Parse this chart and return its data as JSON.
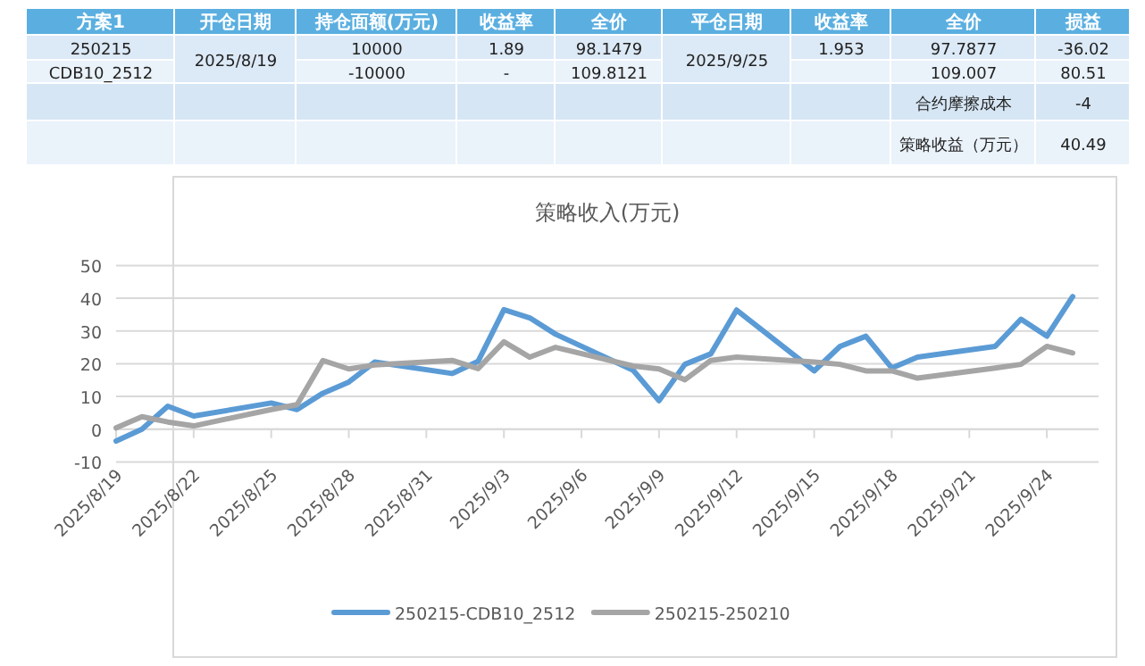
{
  "chart_data": [
    {
      "type": "other",
      "categories": [
        "方案1",
        "开仓日期",
        "持仓面额(万元)",
        "收益率",
        "全价",
        "平仓日期",
        "收益率",
        "全价",
        "损益"
      ],
      "annotations": [
        "250215",
        "2025/8/19",
        "10000",
        "1.89",
        "98.1479",
        "2025/9/25",
        "1.953",
        "97.7877",
        "-36.02",
        "CDB10_2512",
        "-10000",
        "-",
        "109.8121",
        "109.007",
        "80.51",
        "合约摩擦成本",
        "-4",
        "策略收益（万元）",
        "40.49"
      ]
    },
    {
      "type": "line",
      "title": "策略收入(万元)",
      "x": [
        "2025-08-19",
        "2025-08-20",
        "2025-08-21",
        "2025-08-22",
        "2025-08-25",
        "2025-08-26",
        "2025-08-27",
        "2025-08-28",
        "2025-08-29",
        "2025-09-01",
        "2025-09-02",
        "2025-09-03",
        "2025-09-04",
        "2025-09-05",
        "2025-09-08",
        "2025-09-09",
        "2025-09-10",
        "2025-09-11",
        "2025-09-12",
        "2025-09-15",
        "2025-09-16",
        "2025-09-17",
        "2025-09-18",
        "2025-09-19",
        "2025-09-22",
        "2025-09-23",
        "2025-09-24",
        "2025-09-25"
      ],
      "series": [
        {
          "name": "250215-CDB10_2512",
          "color": "#5b9bd5",
          "values": [
            -3.6,
            0,
            7,
            4,
            8,
            6,
            11,
            14.4,
            20.5,
            17,
            20.7,
            36.5,
            34,
            29,
            18,
            8.7,
            19.8,
            23,
            36.4,
            17.8,
            25.3,
            28.4,
            18.7,
            22,
            25.3,
            33.6,
            28.4,
            40.5
          ]
        },
        {
          "name": "250215-250210",
          "color": "#a5a5a5",
          "values": [
            0.4,
            3.8,
            2.2,
            1,
            6,
            7.5,
            21,
            18.4,
            19.6,
            21,
            18.5,
            26.7,
            22,
            25,
            19.3,
            18.4,
            15.1,
            21,
            22,
            20.5,
            19.8,
            17.8,
            17.8,
            15.6,
            18.7,
            19.8,
            25.3,
            23.3
          ]
        }
      ],
      "xlim": [
        "2025-08-19",
        "2025-09-26"
      ],
      "xticks": [
        {
          "value": "2025-08-19",
          "label": "2025/8/19"
        },
        {
          "value": "2025-08-22",
          "label": "2025/8/22"
        },
        {
          "value": "2025-08-25",
          "label": "2025/8/25"
        },
        {
          "value": "2025-08-28",
          "label": "2025/8/28"
        },
        {
          "value": "2025-08-31",
          "label": "2025/8/31"
        },
        {
          "value": "2025-09-03",
          "label": "2025/9/3"
        },
        {
          "value": "2025-09-06",
          "label": "2025/9/6"
        },
        {
          "value": "2025-09-09",
          "label": "2025/9/9"
        },
        {
          "value": "2025-09-12",
          "label": "2025/9/12"
        },
        {
          "value": "2025-09-15",
          "label": "2025/9/15"
        },
        {
          "value": "2025-09-18",
          "label": "2025/9/18"
        },
        {
          "value": "2025-09-21",
          "label": "2025/9/21"
        },
        {
          "value": "2025-09-24",
          "label": "2025/9/24"
        }
      ],
      "ylim": [
        -10,
        50
      ],
      "yticks": [
        -10,
        0,
        10,
        20,
        30,
        40,
        50
      ],
      "grid": "y",
      "legend": "bottom",
      "marker": "none",
      "line_style": "solid"
    }
  ]
}
